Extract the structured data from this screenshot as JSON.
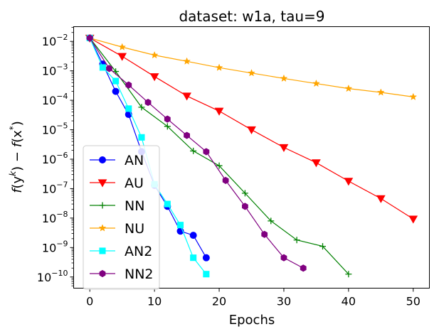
{
  "chart_data": {
    "type": "line",
    "title": "dataset: w1a, tau=9",
    "xlabel": "Epochs",
    "ylabel": "f(y^k) − f(x*)",
    "ylabel_parts": {
      "f1": "f",
      "y": "(y",
      "k": "k",
      "mid": ") − ",
      "f2": "f",
      "x": "(x",
      "star": "*",
      "close": ")"
    },
    "yscale": "log",
    "xlim": [
      -2.5,
      52.5
    ],
    "ylim_log10": [
      -10.38,
      -1.5
    ],
    "xticks": [
      0,
      10,
      20,
      30,
      40,
      50
    ],
    "xtick_labels": [
      "0",
      "10",
      "20",
      "30",
      "40",
      "50"
    ],
    "yticks_exp": [
      -2,
      -3,
      -4,
      -5,
      -6,
      -7,
      -8,
      -9,
      -10
    ],
    "ytick_base": "10",
    "ytick_exp_labels": [
      "−2",
      "−3",
      "−4",
      "−5",
      "−6",
      "−7",
      "−8",
      "−9",
      "−10"
    ],
    "legend_position": "lower-left",
    "series": [
      {
        "name": "AN",
        "color": "#0000ff",
        "marker": "circle",
        "x": [
          0,
          2,
          4,
          6,
          8,
          10,
          12,
          14,
          16,
          18
        ],
        "y": [
          0.013,
          0.0017,
          0.0002,
          3.3e-05,
          1.8e-06,
          1.3e-07,
          2.5e-08,
          3.6e-09,
          2.6e-09,
          4.5e-10
        ]
      },
      {
        "name": "AU",
        "color": "#ff0000",
        "marker": "triangle-down",
        "x": [
          0,
          5,
          10,
          15,
          20,
          25,
          30,
          35,
          40,
          45,
          50
        ],
        "y": [
          0.013,
          0.0031,
          0.00064,
          0.00014,
          4.3e-05,
          1e-05,
          2.5e-06,
          7.6e-07,
          1.8e-07,
          4.6e-08,
          9.3e-09
        ]
      },
      {
        "name": "NN",
        "color": "#008000",
        "marker": "plus",
        "x": [
          0,
          4,
          8,
          12,
          16,
          20,
          24,
          28,
          32,
          36,
          40
        ],
        "y": [
          0.013,
          0.00095,
          5.8e-05,
          1.3e-05,
          1.9e-06,
          6e-07,
          7e-08,
          8e-09,
          1.8e-09,
          1.1e-09,
          1.25e-10
        ]
      },
      {
        "name": "NU",
        "color": "#ffa500",
        "marker": "star",
        "x": [
          0,
          5,
          10,
          15,
          20,
          25,
          30,
          35,
          40,
          45,
          50
        ],
        "y": [
          0.013,
          0.0064,
          0.0034,
          0.0021,
          0.00128,
          0.00084,
          0.00055,
          0.00037,
          0.00025,
          0.000185,
          0.00013
        ]
      },
      {
        "name": "AN2",
        "color": "#00ffff",
        "marker": "square",
        "x": [
          0,
          2,
          4,
          6,
          8,
          10,
          12,
          14,
          16,
          18
        ],
        "y": [
          0.013,
          0.0013,
          0.00045,
          5.2e-05,
          5.5e-06,
          1.4e-07,
          3e-08,
          5.8e-09,
          4.5e-10,
          1.25e-10
        ]
      },
      {
        "name": "NN2",
        "color": "#800080",
        "marker": "hexagon",
        "x": [
          0,
          3,
          6,
          9,
          12,
          15,
          18,
          21,
          24,
          27,
          30,
          33
        ],
        "y": [
          0.013,
          0.0012,
          0.00033,
          8.5e-05,
          2.3e-05,
          6.4e-06,
          1.8e-06,
          1.9e-07,
          2.5e-08,
          2.8e-09,
          4.5e-10,
          2e-10
        ]
      }
    ]
  }
}
